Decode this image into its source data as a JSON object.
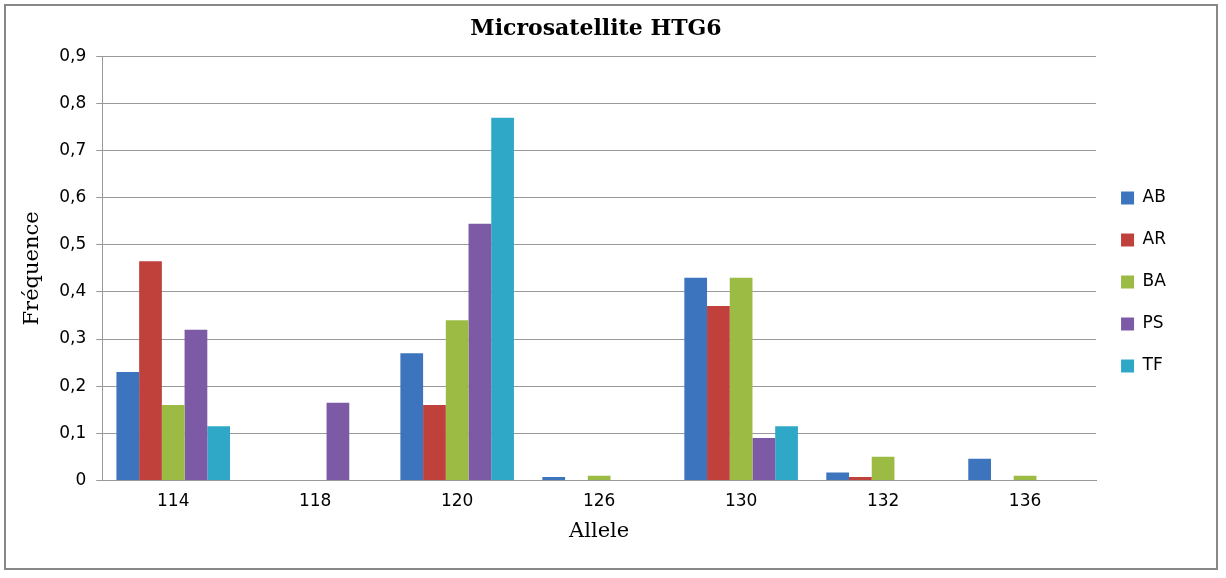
{
  "chart_data": {
    "type": "bar",
    "title": "Microsatellite HTG6",
    "xlabel": "Allele",
    "ylabel": "Fréquence",
    "categories": [
      "114",
      "118",
      "120",
      "126",
      "130",
      "132",
      "136"
    ],
    "series": [
      {
        "name": "AB",
        "color": "#3c74bd",
        "values": [
          0.23,
          0,
          0.27,
          0.007,
          0.43,
          0.017,
          0.046
        ]
      },
      {
        "name": "AR",
        "color": "#c0403c",
        "values": [
          0.465,
          0,
          0.16,
          0,
          0.37,
          0.007,
          0
        ]
      },
      {
        "name": "BA",
        "color": "#9bbb45",
        "values": [
          0.16,
          0,
          0.34,
          0.01,
          0.43,
          0.05,
          0.01
        ]
      },
      {
        "name": "PS",
        "color": "#7d5aa5",
        "values": [
          0.32,
          0.165,
          0.545,
          0,
          0.09,
          0,
          0
        ]
      },
      {
        "name": "TF",
        "color": "#2fa8c8",
        "values": [
          0.115,
          0,
          0.77,
          0,
          0.115,
          0,
          0
        ]
      }
    ],
    "ylim": [
      0,
      0.9
    ],
    "yticks": [
      {
        "value": 0,
        "label": "0"
      },
      {
        "value": 0.1,
        "label": "0,1"
      },
      {
        "value": 0.2,
        "label": "0,2"
      },
      {
        "value": 0.3,
        "label": "0,3"
      },
      {
        "value": 0.4,
        "label": "0,4"
      },
      {
        "value": 0.5,
        "label": "0,5"
      },
      {
        "value": 0.6,
        "label": "0,6"
      },
      {
        "value": 0.7,
        "label": "0,7"
      },
      {
        "value": 0.8,
        "label": "0,8"
      },
      {
        "value": 0.9,
        "label": "0,9"
      }
    ],
    "grid": "y",
    "legend": "right"
  }
}
